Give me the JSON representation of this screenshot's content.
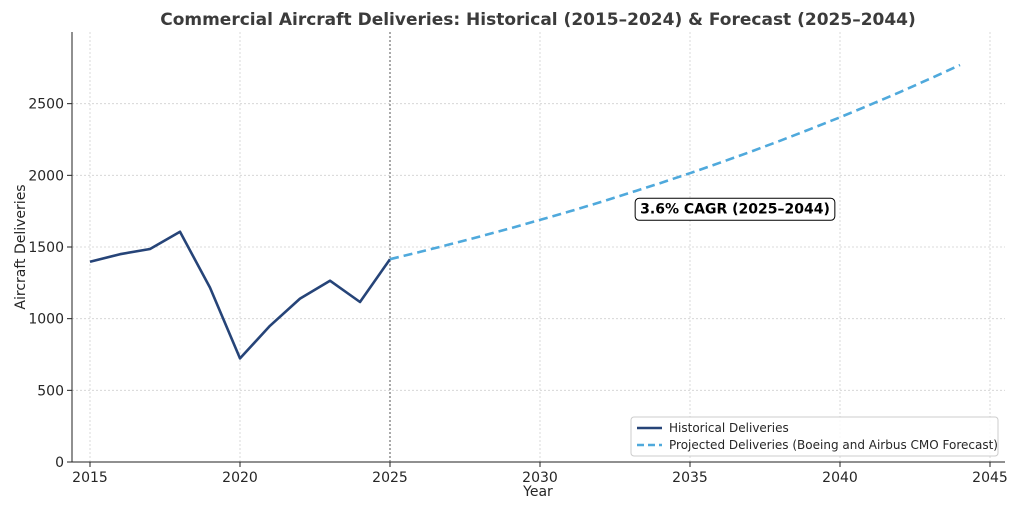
{
  "chart_data": {
    "type": "line",
    "title": "Commercial Aircraft Deliveries: Historical (2015–2024) & Forecast (2025–2044)",
    "xlabel": "Year",
    "ylabel": "Aircraft Deliveries",
    "xlim": [
      2014.4,
      2045.5
    ],
    "ylim": [
      0,
      3000
    ],
    "xticks": [
      2015,
      2020,
      2025,
      2030,
      2035,
      2040,
      2045
    ],
    "yticks": [
      0,
      500,
      1000,
      1500,
      2000,
      2500
    ],
    "grid": true,
    "legend_position": "bottom-right",
    "divider_x": 2025,
    "series": [
      {
        "name": "Historical Deliveries",
        "color": "#264478",
        "style": "solid",
        "x": [
          2015,
          2016,
          2017,
          2018,
          2019,
          2020,
          2021,
          2022,
          2023,
          2024,
          2025
        ],
        "y": [
          1397,
          1450,
          1486,
          1606,
          1217,
          723,
          950,
          1140,
          1265,
          1116,
          1415
        ]
      },
      {
        "name": "Projected Deliveries (Boeing and Airbus CMO Forecast)",
        "color": "#4fa9dc",
        "style": "dashed",
        "x": [
          2025,
          2026,
          2027,
          2028,
          2029,
          2030,
          2031,
          2032,
          2033,
          2034,
          2035,
          2036,
          2037,
          2038,
          2039,
          2040,
          2041,
          2042,
          2043,
          2044
        ],
        "y": [
          1415,
          1466,
          1519,
          1573,
          1630,
          1689,
          1749,
          1812,
          1878,
          1945,
          2015,
          2088,
          2163,
          2241,
          2322,
          2405,
          2492,
          2581,
          2674,
          2770
        ]
      }
    ],
    "annotation": {
      "text": "3.6% CAGR (2025–2044)",
      "x": 2036.5,
      "y": 1770
    }
  }
}
